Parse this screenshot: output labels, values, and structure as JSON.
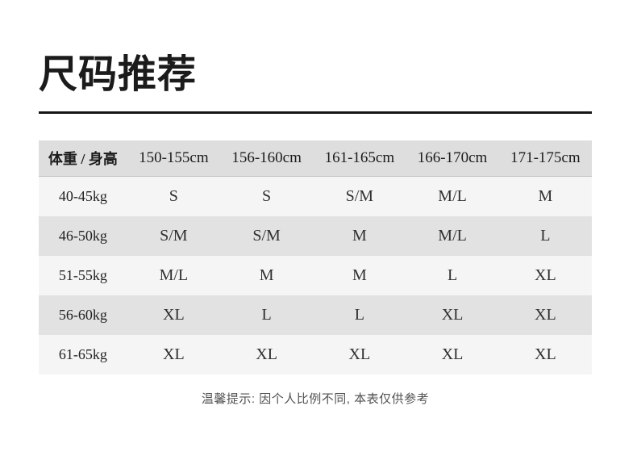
{
  "title": "尺码推荐",
  "table": {
    "corner_header": "体重 / 身高",
    "height_columns": [
      "150-155cm",
      "156-160cm",
      "161-165cm",
      "166-170cm",
      "171-175cm"
    ],
    "rows": [
      {
        "label": "40-45kg",
        "values": [
          "S",
          "S",
          "S/M",
          "M/L",
          "M"
        ]
      },
      {
        "label": "46-50kg",
        "values": [
          "S/M",
          "S/M",
          "M",
          "M/L",
          "L"
        ]
      },
      {
        "label": "51-55kg",
        "values": [
          "M/L",
          "M",
          "M",
          "L",
          "XL"
        ]
      },
      {
        "label": "56-60kg",
        "values": [
          "XL",
          "L",
          "L",
          "XL",
          "XL"
        ]
      },
      {
        "label": "61-65kg",
        "values": [
          "XL",
          "XL",
          "XL",
          "XL",
          "XL"
        ]
      }
    ]
  },
  "note": "温馨提示: 因个人比例不同, 本表仅供参考",
  "colors": {
    "header_bg": "#dedede",
    "row_gray": "#e2e2e2",
    "row_light": "#f5f5f5",
    "title_text": "#1b1b1b",
    "rule": "#151515",
    "note_text": "#525252"
  }
}
